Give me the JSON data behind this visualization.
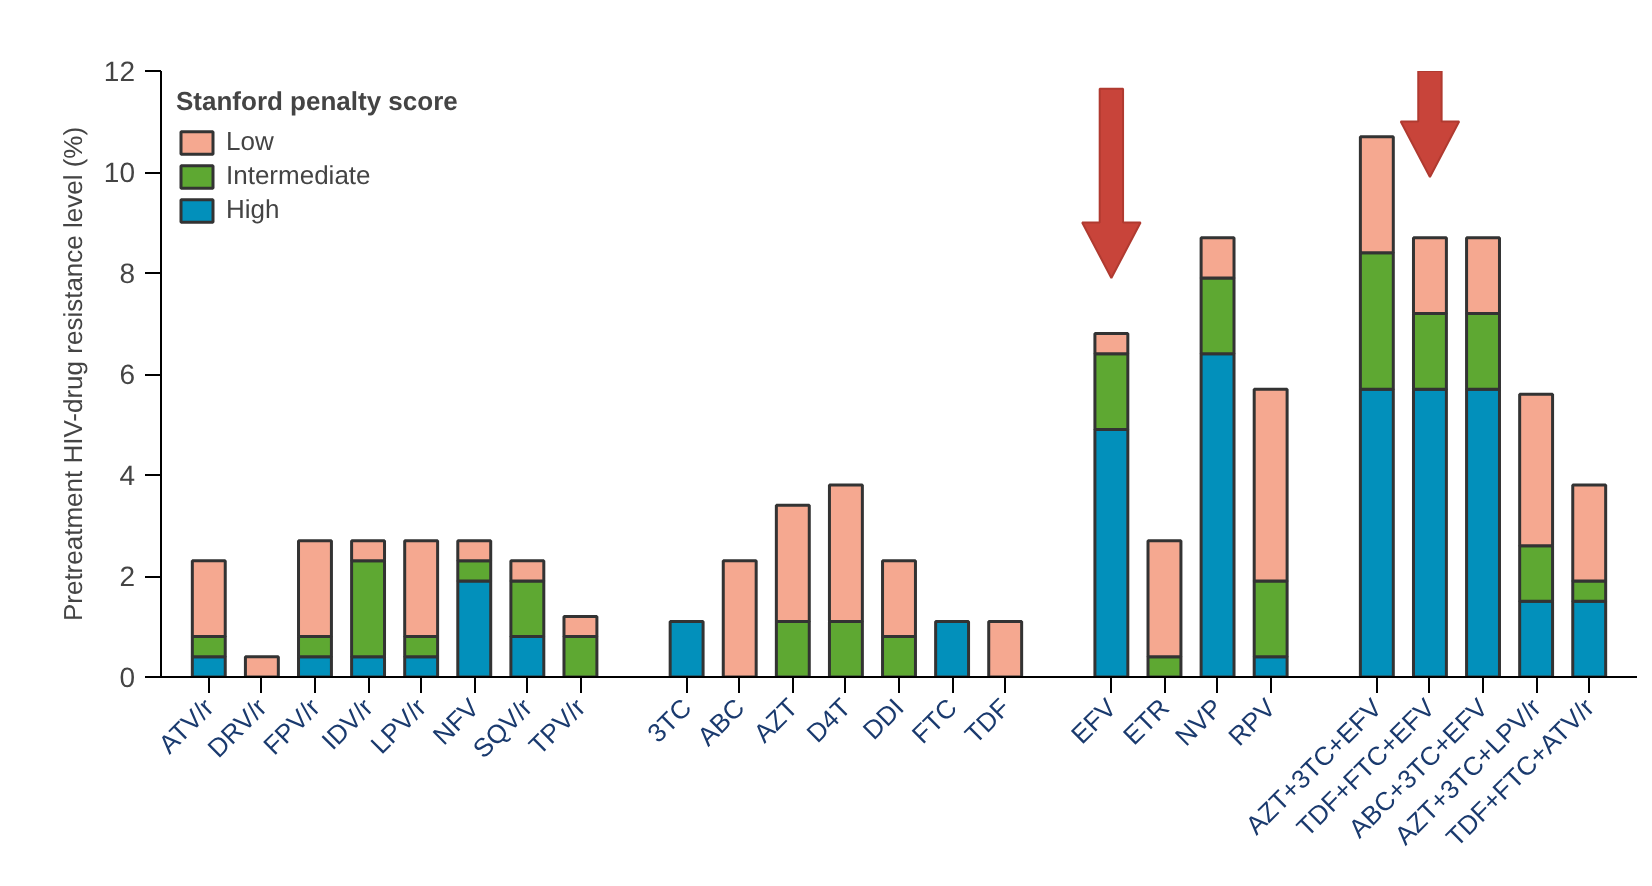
{
  "chart_data": {
    "type": "bar",
    "stacked": true,
    "ylabel": "Pretreatment HIV-drug resistance level (%)",
    "legend_title": "Stanford penalty score",
    "categories": [
      "ATV/r",
      "DRV/r",
      "FPV/r",
      "IDV/r",
      "LPV/r",
      "NFV",
      "SQV/r",
      "TPV/r",
      null,
      "3TC",
      "ABC",
      "AZT",
      "D4T",
      "DDI",
      "FTC",
      "TDF",
      null,
      "EFV",
      "ETR",
      "NVP",
      "RPV",
      null,
      "AZT+3TC+EFV",
      "TDF+FTC+EFV",
      "ABC+3TC+EFV",
      "AZT+3TC+LPV/r",
      "TDF+FTC+ATV/r"
    ],
    "series": [
      {
        "name": "High",
        "color": "#0290bb",
        "values": [
          0.4,
          null,
          0.4,
          0.4,
          0.4,
          1.9,
          0.8,
          null,
          null,
          1.1,
          null,
          null,
          null,
          null,
          1.1,
          null,
          null,
          4.9,
          null,
          6.4,
          0.4,
          null,
          5.7,
          5.7,
          5.7,
          1.5,
          1.5
        ]
      },
      {
        "name": "Intermediate",
        "color": "#5ea832",
        "values": [
          0.4,
          null,
          0.4,
          1.9,
          0.4,
          0.4,
          1.1,
          0.8,
          null,
          null,
          null,
          1.1,
          1.1,
          0.8,
          null,
          null,
          null,
          1.5,
          0.4,
          1.5,
          1.5,
          null,
          2.7,
          1.5,
          1.5,
          1.1,
          0.4
        ]
      },
      {
        "name": "Low",
        "color": "#f5a890",
        "values": [
          1.5,
          0.4,
          1.9,
          0.4,
          1.9,
          0.4,
          0.4,
          0.4,
          null,
          null,
          2.3,
          2.3,
          2.7,
          1.5,
          null,
          1.1,
          null,
          0.4,
          2.3,
          0.8,
          3.8,
          null,
          2.3,
          1.5,
          1.5,
          3.0,
          1.9
        ]
      }
    ],
    "ylim": [
      0,
      12
    ],
    "yticks": [
      0,
      2,
      4,
      6,
      8,
      10,
      12
    ],
    "grid": false,
    "legend": "top left"
  }
}
